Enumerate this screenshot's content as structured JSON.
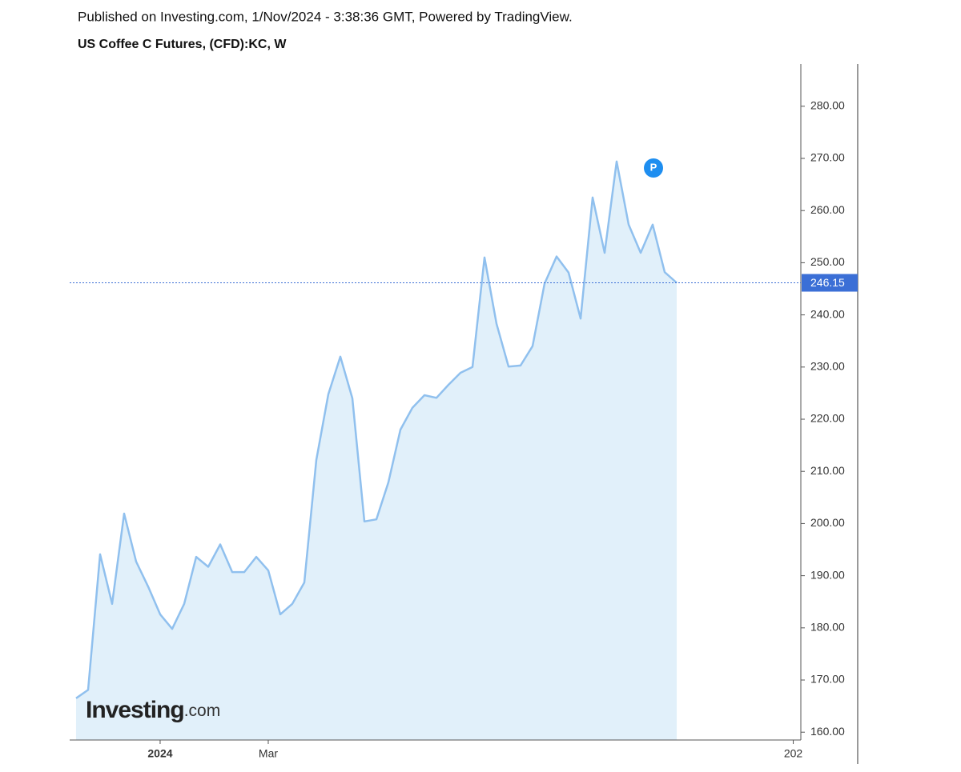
{
  "header": "Published on Investing.com, 1/Nov/2024 - 3:38:36 GMT, Powered by TradingView.",
  "chart_data": {
    "type": "area",
    "title": "US Coffee C Futures, (CFD):KC, W",
    "color": "#90c0ee",
    "fill": "#e1f0fa",
    "last_value_color": "#3b6fd6",
    "values": [
      166.5,
      168.1,
      194.1,
      184.6,
      201.9,
      192.7,
      187.9,
      182.6,
      179.8,
      184.6,
      193.6,
      191.7,
      196.0,
      190.7,
      190.7,
      193.6,
      191.0,
      182.6,
      184.6,
      188.7,
      212.2,
      224.8,
      232.0,
      224.0,
      200.4,
      200.8,
      207.9,
      218.0,
      222.2,
      224.6,
      224.1,
      226.6,
      228.9,
      230.0,
      251.0,
      238.3,
      230.1,
      230.3,
      234.0,
      246.0,
      251.2,
      248.1,
      239.3,
      262.5,
      251.9,
      269.4,
      257.3,
      251.9,
      257.3,
      248.2,
      246.15
    ],
    "xlim": [
      -0.53,
      60.33
    ],
    "xticks": [
      {
        "value": 7,
        "label": "2024"
      },
      {
        "value": 16,
        "label": "Mar"
      },
      {
        "value": 59.7,
        "label": "202"
      }
    ],
    "ylim": [
      158.5,
      288.1
    ],
    "yticks": [
      {
        "value": 160,
        "label": "160.00"
      },
      {
        "value": 170,
        "label": "170.00"
      },
      {
        "value": 180,
        "label": "180.00"
      },
      {
        "value": 190,
        "label": "190.00"
      },
      {
        "value": 200,
        "label": "200.00"
      },
      {
        "value": 210,
        "label": "210.00"
      },
      {
        "value": 220,
        "label": "220.00"
      },
      {
        "value": 230,
        "label": "230.00"
      },
      {
        "value": 240,
        "label": "240.00"
      },
      {
        "value": 250,
        "label": "250.00"
      },
      {
        "value": 260,
        "label": "260.00"
      },
      {
        "value": 270,
        "label": "270.00"
      },
      {
        "value": 280,
        "label": "280.00"
      }
    ],
    "marker": "P",
    "watermark": "Investing",
    "watermark_suffix": ".com"
  }
}
